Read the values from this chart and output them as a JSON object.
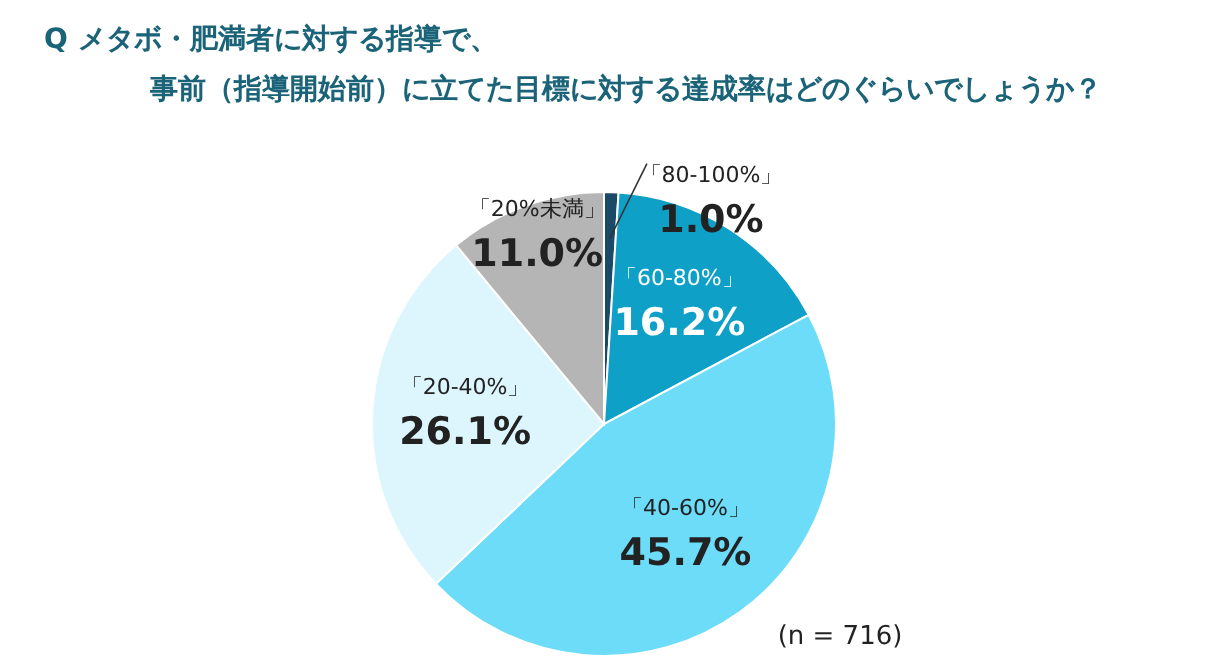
{
  "chart_data": {
    "type": "pie",
    "title": "Q メタボ・肥満者に対する指導で、事前（指導開始前）に立てた目標に対する達成率はどのぐらいでしょうか？",
    "categories": [
      "「80-100%」",
      "「60-80%」",
      "「40-60%」",
      "「20-40%」",
      "「20%未満」"
    ],
    "values": [
      1.0,
      16.2,
      45.7,
      26.1,
      11.0
    ],
    "value_labels": [
      "1.0%",
      "16.2%",
      "45.7%",
      "26.1%",
      "11.0%"
    ],
    "colors": [
      "#1b4a68",
      "#0fa0c8",
      "#6cdcf8",
      "#ddf6fd",
      "#b5b5b5"
    ],
    "annotations": [
      "(n = 716)"
    ]
  }
}
